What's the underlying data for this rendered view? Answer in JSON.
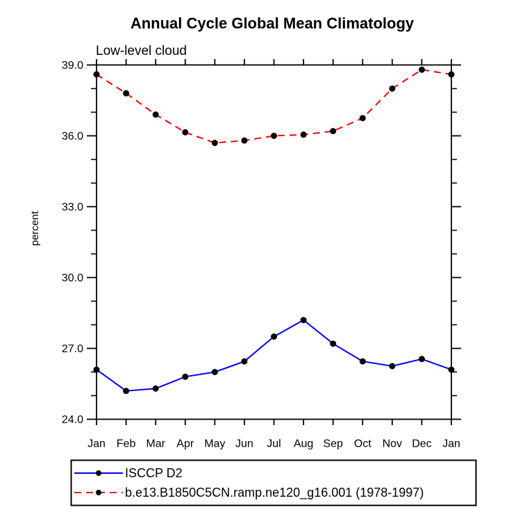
{
  "page": {
    "background": "#ffffff",
    "text_color": "#000000"
  },
  "chart_data": {
    "type": "line",
    "title": "Annual Cycle Global Mean Climatology",
    "subtitle": "Low-level cloud",
    "xlabel": "",
    "ylabel": "percent",
    "categories": [
      "Jan",
      "Feb",
      "Mar",
      "Apr",
      "May",
      "Jun",
      "Jul",
      "Aug",
      "Sep",
      "Oct",
      "Nov",
      "Dec",
      "Jan"
    ],
    "ylim": [
      24.0,
      39.0
    ],
    "ytick_majors": [
      39.0,
      36.0,
      33.0,
      30.0,
      27.0,
      24.0
    ],
    "ytick_minor_step": 1.0,
    "grid": false,
    "frame_color": "#000000",
    "legend_position": "below-plot-boxed",
    "series": [
      {
        "name": "ISCCP D2",
        "line_color": "#0000ff",
        "line_style": "solid",
        "marker": "filled-circle",
        "marker_color": "#000000",
        "values": [
          26.1,
          25.2,
          25.3,
          25.8,
          26.0,
          26.45,
          27.5,
          28.2,
          27.2,
          26.45,
          26.25,
          26.55,
          26.1
        ]
      },
      {
        "name": "b.e13.B1850C5CN.ramp.ne120_g16.001 (1978-1997)",
        "line_color": "#ff0000",
        "line_style": "dashed",
        "marker": "filled-circle",
        "marker_color": "#000000",
        "values": [
          38.6,
          37.8,
          36.9,
          36.15,
          35.7,
          35.8,
          36.0,
          36.05,
          36.2,
          36.75,
          38.0,
          38.8,
          38.6
        ]
      }
    ]
  }
}
